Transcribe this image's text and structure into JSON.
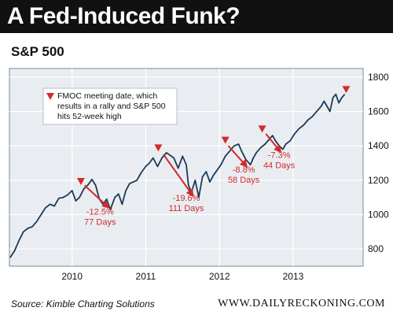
{
  "header": {
    "title": "A Fed-Induced Funk?"
  },
  "footer": {
    "source": "Source: Kimble Charting Solutions",
    "site": "WWW.DAILYRECKONING.COM"
  },
  "colors": {
    "line": "#1b3a57",
    "marker": "#d12b2b",
    "arrow": "#d12b2b",
    "label": "#d12b2b",
    "plot_bg": "#e9edf2",
    "grid": "#ffffff"
  },
  "chart_data": {
    "type": "line",
    "title": "S&P 500",
    "xlabel": "",
    "ylabel": "",
    "x_ticks": [
      2010,
      2011,
      2012,
      2013
    ],
    "xlim": [
      2009.15,
      2013.95
    ],
    "ylim": [
      700,
      1850
    ],
    "y_ticks": [
      800,
      1000,
      1200,
      1400,
      1600,
      1800
    ],
    "grid": true,
    "y_axis_side": "right",
    "legend": {
      "position": "top-left",
      "text": [
        "FMOC meeting date, which",
        "results in a rally and S&P 500",
        "hits 52-week high"
      ]
    },
    "series": [
      {
        "values": [
          [
            2009.16,
            750
          ],
          [
            2009.22,
            790
          ],
          [
            2009.28,
            850
          ],
          [
            2009.34,
            900
          ],
          [
            2009.4,
            920
          ],
          [
            2009.46,
            930
          ],
          [
            2009.52,
            960
          ],
          [
            2009.58,
            1000
          ],
          [
            2009.64,
            1040
          ],
          [
            2009.7,
            1060
          ],
          [
            2009.76,
            1050
          ],
          [
            2009.82,
            1095
          ],
          [
            2009.88,
            1100
          ],
          [
            2009.94,
            1115
          ],
          [
            2010.0,
            1140
          ],
          [
            2010.05,
            1080
          ],
          [
            2010.1,
            1100
          ],
          [
            2010.16,
            1150
          ],
          [
            2010.22,
            1175
          ],
          [
            2010.27,
            1205
          ],
          [
            2010.32,
            1170
          ],
          [
            2010.37,
            1090
          ],
          [
            2010.42,
            1060
          ],
          [
            2010.47,
            1090
          ],
          [
            2010.52,
            1030
          ],
          [
            2010.58,
            1100
          ],
          [
            2010.63,
            1120
          ],
          [
            2010.68,
            1060
          ],
          [
            2010.73,
            1140
          ],
          [
            2010.78,
            1180
          ],
          [
            2010.83,
            1190
          ],
          [
            2010.88,
            1200
          ],
          [
            2010.94,
            1245
          ],
          [
            2011.0,
            1280
          ],
          [
            2011.05,
            1300
          ],
          [
            2011.1,
            1330
          ],
          [
            2011.16,
            1280
          ],
          [
            2011.22,
            1330
          ],
          [
            2011.28,
            1360
          ],
          [
            2011.33,
            1345
          ],
          [
            2011.38,
            1330
          ],
          [
            2011.44,
            1270
          ],
          [
            2011.5,
            1340
          ],
          [
            2011.55,
            1290
          ],
          [
            2011.58,
            1170
          ],
          [
            2011.62,
            1130
          ],
          [
            2011.67,
            1200
          ],
          [
            2011.72,
            1100
          ],
          [
            2011.77,
            1220
          ],
          [
            2011.82,
            1250
          ],
          [
            2011.87,
            1190
          ],
          [
            2011.92,
            1230
          ],
          [
            2011.97,
            1260
          ],
          [
            2012.02,
            1290
          ],
          [
            2012.08,
            1340
          ],
          [
            2012.14,
            1370
          ],
          [
            2012.2,
            1400
          ],
          [
            2012.26,
            1410
          ],
          [
            2012.3,
            1370
          ],
          [
            2012.36,
            1320
          ],
          [
            2012.42,
            1290
          ],
          [
            2012.46,
            1330
          ],
          [
            2012.5,
            1360
          ],
          [
            2012.56,
            1390
          ],
          [
            2012.62,
            1410
          ],
          [
            2012.68,
            1440
          ],
          [
            2012.72,
            1460
          ],
          [
            2012.76,
            1430
          ],
          [
            2012.81,
            1400
          ],
          [
            2012.86,
            1380
          ],
          [
            2012.9,
            1410
          ],
          [
            2012.96,
            1430
          ],
          [
            2013.02,
            1470
          ],
          [
            2013.08,
            1500
          ],
          [
            2013.14,
            1520
          ],
          [
            2013.2,
            1550
          ],
          [
            2013.26,
            1570
          ],
          [
            2013.32,
            1600
          ],
          [
            2013.38,
            1630
          ],
          [
            2013.42,
            1660
          ],
          [
            2013.46,
            1630
          ],
          [
            2013.5,
            1600
          ],
          [
            2013.54,
            1680
          ],
          [
            2013.58,
            1700
          ],
          [
            2013.62,
            1650
          ],
          [
            2013.66,
            1680
          ],
          [
            2013.7,
            1700
          ]
        ]
      }
    ],
    "fomc_markers": [
      {
        "x": 2010.12,
        "y": 1195
      },
      {
        "x": 2011.17,
        "y": 1390
      },
      {
        "x": 2012.08,
        "y": 1435
      },
      {
        "x": 2012.58,
        "y": 1500
      },
      {
        "x": 2013.72,
        "y": 1730
      }
    ],
    "declines": [
      {
        "from": [
          2010.17,
          1170
        ],
        "to": [
          2010.5,
          1040
        ],
        "pct": "-12.5%",
        "days": "77 Days",
        "label_at": [
          2010.38,
          1000
        ]
      },
      {
        "from": [
          2011.24,
          1350
        ],
        "to": [
          2011.64,
          1110
        ],
        "pct": "-19.6%",
        "days": "111 Days",
        "label_at": [
          2011.55,
          1080
        ]
      },
      {
        "from": [
          2012.12,
          1400
        ],
        "to": [
          2012.37,
          1280
        ],
        "pct": "-8.8%",
        "days": "58 Days",
        "label_at": [
          2012.33,
          1245
        ]
      },
      {
        "from": [
          2012.63,
          1470
        ],
        "to": [
          2012.83,
          1365
        ],
        "pct": "-7.3%",
        "days": "44 Days",
        "label_at": [
          2012.81,
          1330
        ]
      }
    ]
  }
}
